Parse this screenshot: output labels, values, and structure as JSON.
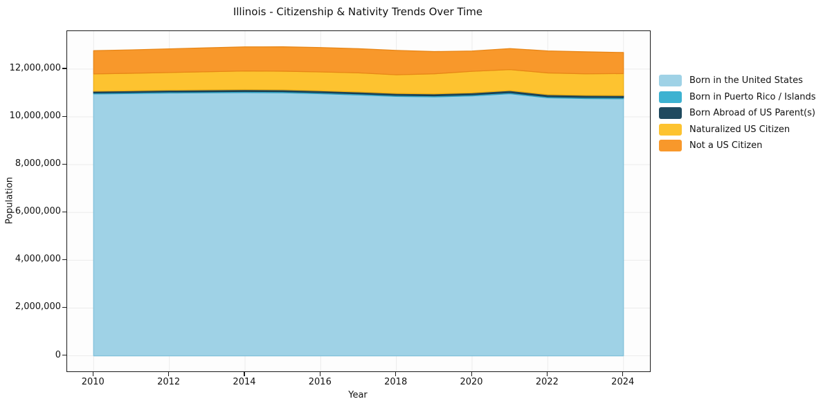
{
  "title": "Illinois - Citizenship & Nativity Trends Over Time",
  "chart_data": {
    "type": "area",
    "stacked": true,
    "title": "Illinois - Citizenship & Nativity Trends Over Time",
    "xlabel": "Year",
    "ylabel": "Population",
    "grid": true,
    "grid_color": "#ebebeb",
    "legend_position": "right-outside",
    "x": [
      2010,
      2011,
      2012,
      2013,
      2014,
      2015,
      2016,
      2017,
      2018,
      2019,
      2020,
      2021,
      2022,
      2023,
      2024
    ],
    "series": [
      {
        "name": "Born in the United States",
        "color": "#9fd2e6",
        "edge_color": "#82c2db",
        "values": [
          10960000,
          10980000,
          11000000,
          11010000,
          11020000,
          11010000,
          10970000,
          10920000,
          10860000,
          10840000,
          10880000,
          10970000,
          10800000,
          10770000,
          10760000
        ]
      },
      {
        "name": "Born in Puerto Rico / Islands",
        "color": "#3db2d1",
        "edge_color": "#2b9cbd",
        "values": [
          45000,
          45000,
          46000,
          46000,
          47000,
          47000,
          47000,
          46000,
          46000,
          46000,
          47000,
          48000,
          48000,
          49000,
          50000
        ]
      },
      {
        "name": "Born Abroad of US Parent(s)",
        "color": "#1f4a5f",
        "edge_color": "#15374a",
        "values": [
          70000,
          71000,
          72000,
          74000,
          75000,
          76000,
          76000,
          77000,
          78000,
          78000,
          80000,
          82000,
          83000,
          84000,
          85000
        ]
      },
      {
        "name": "Naturalized US Citizen",
        "color": "#fdc330",
        "edge_color": "#eeae14",
        "values": [
          725000,
          730000,
          740000,
          760000,
          780000,
          780000,
          790000,
          800000,
          780000,
          840000,
          900000,
          880000,
          910000,
          900000,
          920000
        ]
      },
      {
        "name": "Not a US Citizen",
        "color": "#f8982b",
        "edge_color": "#e88617",
        "values": [
          970000,
          980000,
          990000,
          1000000,
          1010000,
          1020000,
          1020000,
          1010000,
          1020000,
          930000,
          850000,
          880000,
          920000,
          920000,
          880000
        ]
      }
    ],
    "xlim": [
      2009.3,
      2024.7
    ],
    "ylim": [
      -650000,
      13590000
    ],
    "xticks": {
      "values": [
        2010,
        2012,
        2014,
        2016,
        2018,
        2020,
        2022,
        2024
      ],
      "labels": [
        "2010",
        "2012",
        "2014",
        "2016",
        "2018",
        "2020",
        "2022",
        "2024"
      ]
    },
    "yticks": {
      "values": [
        0,
        2000000,
        4000000,
        6000000,
        8000000,
        10000000,
        12000000
      ],
      "labels": [
        "0",
        "2,000,000",
        "4,000,000",
        "6,000,000",
        "8,000,000",
        "10,000,000",
        "12,000,000"
      ]
    }
  }
}
